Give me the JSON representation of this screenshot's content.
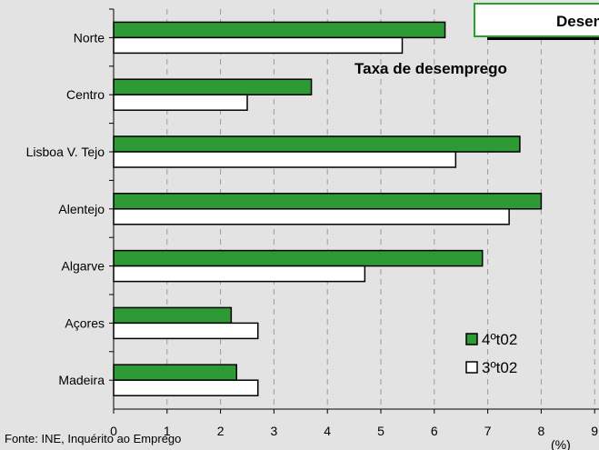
{
  "chart_data": {
    "type": "bar",
    "orientation": "horizontal",
    "title": "Desemprego",
    "subtitle": "Taxa de desemprego",
    "categories": [
      "Norte",
      "Centro",
      "Lisboa V. Tejo",
      "Alentejo",
      "Algarve",
      "Açores",
      "Madeira"
    ],
    "series": [
      {
        "name": "4ºt02",
        "color": "#2e9a35",
        "values": [
          6.2,
          3.7,
          7.6,
          8.0,
          6.9,
          2.2,
          2.3
        ]
      },
      {
        "name": "3ºt02",
        "color": "#ffffff",
        "values": [
          5.4,
          2.5,
          6.4,
          7.4,
          4.7,
          2.7,
          2.7
        ]
      }
    ],
    "xlim": [
      0,
      9
    ],
    "xticks": [
      "0",
      "1",
      "2",
      "3",
      "4",
      "5",
      "6",
      "7",
      "8",
      "9"
    ],
    "xunit": "(%)",
    "grid": "vertical dashed",
    "legend_position": "bottom-right",
    "source": "Fonte: INE, Inquérito ao Emprego"
  }
}
